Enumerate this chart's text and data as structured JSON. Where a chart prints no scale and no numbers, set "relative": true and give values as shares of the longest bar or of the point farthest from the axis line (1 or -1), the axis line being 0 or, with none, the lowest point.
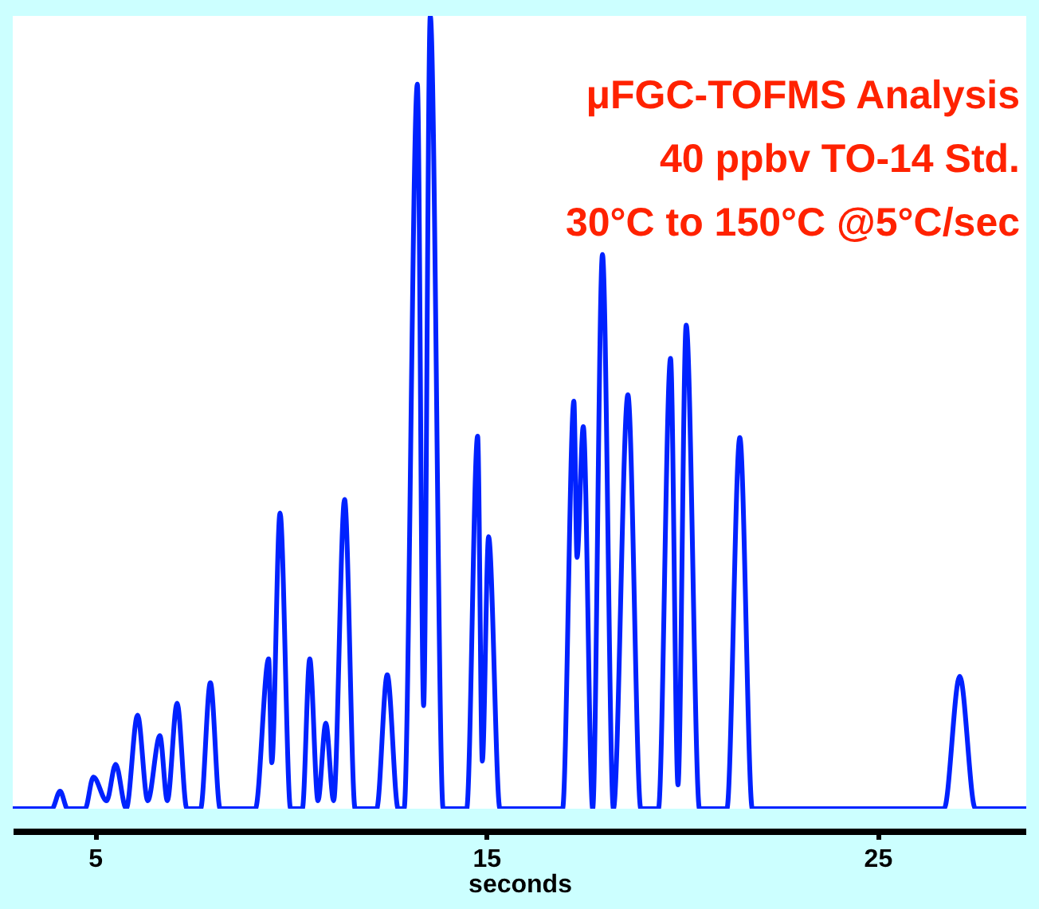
{
  "chart_data": {
    "type": "line",
    "title": "μFGC-TOFMS Analysis",
    "annotations": [
      "40 ppbv TO-14 Std.",
      "30°C to 150°C @5°C/sec"
    ],
    "xlabel": "seconds",
    "relative": true,
    "xlim": [
      2.9,
      28.8
    ],
    "xticks": [
      5,
      15,
      25
    ],
    "grid": false,
    "marker": "none",
    "line_style": "solid",
    "series": [
      {
        "color": "#0022ff",
        "x": [
          2.9,
          3.9,
          4.11,
          4.3,
          4.75,
          4.96,
          5.3,
          5.53,
          5.8,
          6.09,
          6.35,
          6.66,
          6.85,
          7.1,
          7.35,
          7.7,
          7.95,
          8.2,
          9.1,
          9.44,
          9.52,
          9.73,
          10.0,
          10.3,
          10.49,
          10.7,
          10.9,
          11.1,
          11.38,
          11.65,
          12.2,
          12.47,
          12.75,
          12.9,
          13.24,
          13.4,
          13.57,
          13.9,
          14.5,
          14.78,
          14.9,
          15.06,
          15.35,
          16.95,
          17.24,
          17.32,
          17.48,
          17.72,
          17.97,
          18.25,
          18.62,
          18.95,
          19.4,
          19.71,
          19.9,
          20.11,
          20.45,
          21.15,
          21.48,
          21.8,
          26.7,
          27.1,
          27.5,
          28.8
        ],
        "values": [
          0,
          0,
          0.022,
          0,
          0,
          0.04,
          0.01,
          0.056,
          0,
          0.118,
          0.01,
          0.092,
          0.01,
          0.133,
          0,
          0,
          0.159,
          0,
          0,
          0.189,
          0.058,
          0.373,
          0,
          0,
          0.189,
          0.01,
          0.108,
          0.01,
          0.39,
          0,
          0,
          0.169,
          0,
          0,
          0.914,
          0.13,
          1.0,
          0,
          0,
          0.47,
          0.06,
          0.343,
          0,
          0,
          0.514,
          0.317,
          0.482,
          0,
          0.699,
          0,
          0.522,
          0,
          0,
          0.568,
          0.03,
          0.61,
          0,
          0,
          0.468,
          0,
          0,
          0.167,
          0,
          0
        ]
      }
    ]
  }
}
